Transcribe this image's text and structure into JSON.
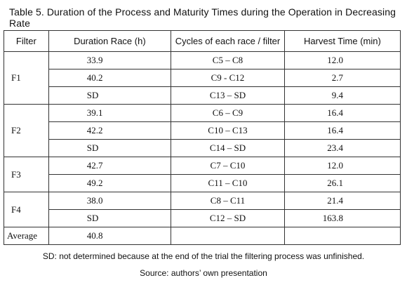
{
  "title": "Table 5. Duration of the Process and Maturity Times during the Operation in Decreasing Rate",
  "headers": [
    "Filter",
    "Duration Race (h)",
    "Cycles of each race / filter",
    "Harvest Time (min)"
  ],
  "groups": [
    {
      "filter": "F1",
      "rows": [
        {
          "duration": "33.9",
          "cycles": "C5 – C8",
          "harvest": "12.0"
        },
        {
          "duration": "40.2",
          "cycles": "C9 - C12",
          "harvest": "2.7"
        },
        {
          "duration": "SD",
          "cycles": "C13 – SD",
          "harvest": "9.4"
        }
      ]
    },
    {
      "filter": "F2",
      "rows": [
        {
          "duration": "39.1",
          "cycles": "C6 – C9",
          "harvest": "16.4"
        },
        {
          "duration": "42.2",
          "cycles": "C10 – C13",
          "harvest": "16.4"
        },
        {
          "duration": "SD",
          "cycles": "C14 – SD",
          "harvest": "23.4"
        }
      ]
    },
    {
      "filter": "F3",
      "rows": [
        {
          "duration": "42.7",
          "cycles": "C7 – C10",
          "harvest": "12.0"
        },
        {
          "duration": "49.2",
          "cycles": "C11 – C10",
          "harvest": "26.1"
        }
      ]
    },
    {
      "filter": "F4",
      "rows": [
        {
          "duration": "38.0",
          "cycles": "C8 – C11",
          "harvest": "21.4"
        },
        {
          "duration": "SD",
          "cycles": "C12 – SD",
          "harvest": "163.8"
        }
      ]
    }
  ],
  "average": {
    "label": "Average",
    "duration": "40.8",
    "cycles": "",
    "harvest": ""
  },
  "footnote": "SD: not determined because at the end of the trial the filtering process was unfinished.",
  "source": "Source: authors’ own presentation"
}
